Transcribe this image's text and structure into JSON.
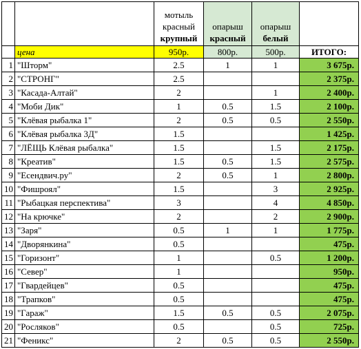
{
  "header": {
    "col1": {
      "line1": "мотыль",
      "line2": "красный",
      "line3": "крупный"
    },
    "col2": {
      "line1": "опарыш",
      "line2": "",
      "line3": "красный"
    },
    "col3": {
      "line1": "опарыш",
      "line2": "",
      "line3": "белый"
    }
  },
  "price_row": {
    "label": "цена",
    "p1": "950р.",
    "p2": "800р.",
    "p3": "500р.",
    "total_label": "ИТОГО:"
  },
  "rows": [
    {
      "n": "1",
      "name": "\"Шторм\"",
      "a": "2.5",
      "b": "1",
      "c": "1",
      "total": "3 675р."
    },
    {
      "n": "2",
      "name": "\"СТРОНГ\"",
      "a": "2.5",
      "b": "",
      "c": "",
      "total": "2 375р."
    },
    {
      "n": "3",
      "name": "\"Касада-Алтай\"",
      "a": "2",
      "b": "",
      "c": "1",
      "total": "2 400р."
    },
    {
      "n": "4",
      "name": "\"Моби Дик\"",
      "a": "1",
      "b": "0.5",
      "c": "1.5",
      "total": "2 100р."
    },
    {
      "n": "5",
      "name": "\"Клёвая рыбалка 1\"",
      "a": "2",
      "b": "0.5",
      "c": "0.5",
      "total": "2 550р."
    },
    {
      "n": "6",
      "name": "\"Клёвая рыбалка 3Д\"",
      "a": "1.5",
      "b": "",
      "c": "",
      "total": "1 425р."
    },
    {
      "n": "7",
      "name": "\"ЛЁЩЬ Клёвая рыбалка\"",
      "a": "1.5",
      "b": "",
      "c": "1.5",
      "total": "2 175р."
    },
    {
      "n": "8",
      "name": "\"Креатив\"",
      "a": "1.5",
      "b": "0.5",
      "c": "1.5",
      "total": "2 575р."
    },
    {
      "n": "9",
      "name": "\"Есендвич.ру\"",
      "a": "2",
      "b": "0.5",
      "c": "1",
      "total": "2 800р."
    },
    {
      "n": "10",
      "name": "\"Фишроял\"",
      "a": "1.5",
      "b": "",
      "c": "3",
      "total": "2 925р."
    },
    {
      "n": "11",
      "name": "\"Рыбацкая перспектива\"",
      "a": "3",
      "b": "",
      "c": "4",
      "total": "4 850р."
    },
    {
      "n": "12",
      "name": "\"На крючке\"",
      "a": "2",
      "b": "",
      "c": "2",
      "total": "2 900р."
    },
    {
      "n": "13",
      "name": "\"Заря\"",
      "a": "0.5",
      "b": "1",
      "c": "1",
      "total": "1 775р."
    },
    {
      "n": "14",
      "name": "\"Дворянкина\"",
      "a": "0.5",
      "b": "",
      "c": "",
      "total": "475р."
    },
    {
      "n": "15",
      "name": "\"Горизонт\"",
      "a": "1",
      "b": "",
      "c": "0.5",
      "total": "1 200р."
    },
    {
      "n": "16",
      "name": "\"Север\"",
      "a": "1",
      "b": "",
      "c": "",
      "total": "950р."
    },
    {
      "n": "17",
      "name": "\"Гвардейцев\"",
      "a": "0.5",
      "b": "",
      "c": "",
      "total": "475р."
    },
    {
      "n": "18",
      "name": "\"Трапков\"",
      "a": "0.5",
      "b": "",
      "c": "",
      "total": "475р."
    },
    {
      "n": "19",
      "name": "\"Гараж\"",
      "a": "1.5",
      "b": "0.5",
      "c": "0.5",
      "total": "2 075р."
    },
    {
      "n": "20",
      "name": "\"Росляков\"",
      "a": "0.5",
      "b": "",
      "c": "0.5",
      "total": "725р."
    },
    {
      "n": "21",
      "name": "\"Феникс\"",
      "a": "2",
      "b": "0.5",
      "c": "0.5",
      "total": "2 550р."
    }
  ],
  "colors": {
    "price_highlight": "#ffff00",
    "header_green": "#d6e9d3",
    "total_green": "#92d050"
  }
}
